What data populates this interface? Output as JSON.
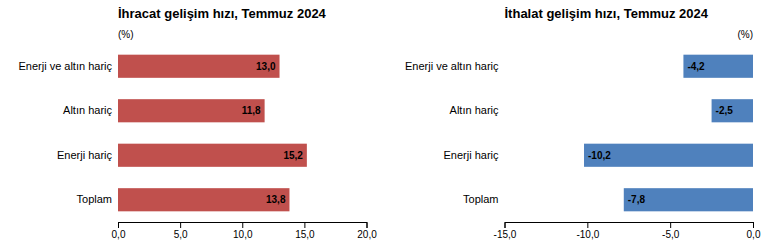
{
  "chart_data": [
    {
      "type": "bar",
      "orientation": "horizontal",
      "title": "İhracat gelişim hızı, Temmuz 2024",
      "annotation": "(%)",
      "categories": [
        "Toplam",
        "Enerji hariç",
        "Altın hariç",
        "Enerji ve altın hariç"
      ],
      "values": [
        13.8,
        15.2,
        11.8,
        13.0
      ],
      "value_labels": [
        "13,8",
        "15,2",
        "11,8",
        "13,0"
      ],
      "data_labels": true,
      "color": "#c0504d",
      "xlim": [
        0,
        20
      ],
      "xticks": [
        {
          "value": 0,
          "label": "0,0"
        },
        {
          "value": 5,
          "label": "5,0"
        },
        {
          "value": 10,
          "label": "10,0"
        },
        {
          "value": 15,
          "label": "15,0"
        },
        {
          "value": 20,
          "label": "20,0"
        }
      ]
    },
    {
      "type": "bar",
      "orientation": "horizontal",
      "title": "İthalat gelişim hızı, Temmuz 2024",
      "annotation": "(%)",
      "categories": [
        "Toplam",
        "Enerji hariç",
        "Altın hariç",
        "Enerji ve altın hariç"
      ],
      "values": [
        -7.8,
        -10.2,
        -2.5,
        -4.2
      ],
      "value_labels": [
        "-7,8",
        "-10,2",
        "-2,5",
        "-4,2"
      ],
      "data_labels": true,
      "color": "#4f81bd",
      "xlim": [
        -15,
        0
      ],
      "xticks": [
        {
          "value": -15,
          "label": "-15,0"
        },
        {
          "value": -10,
          "label": "-10,0"
        },
        {
          "value": -5,
          "label": "-5,0"
        },
        {
          "value": 0,
          "label": "0,0"
        }
      ]
    }
  ]
}
